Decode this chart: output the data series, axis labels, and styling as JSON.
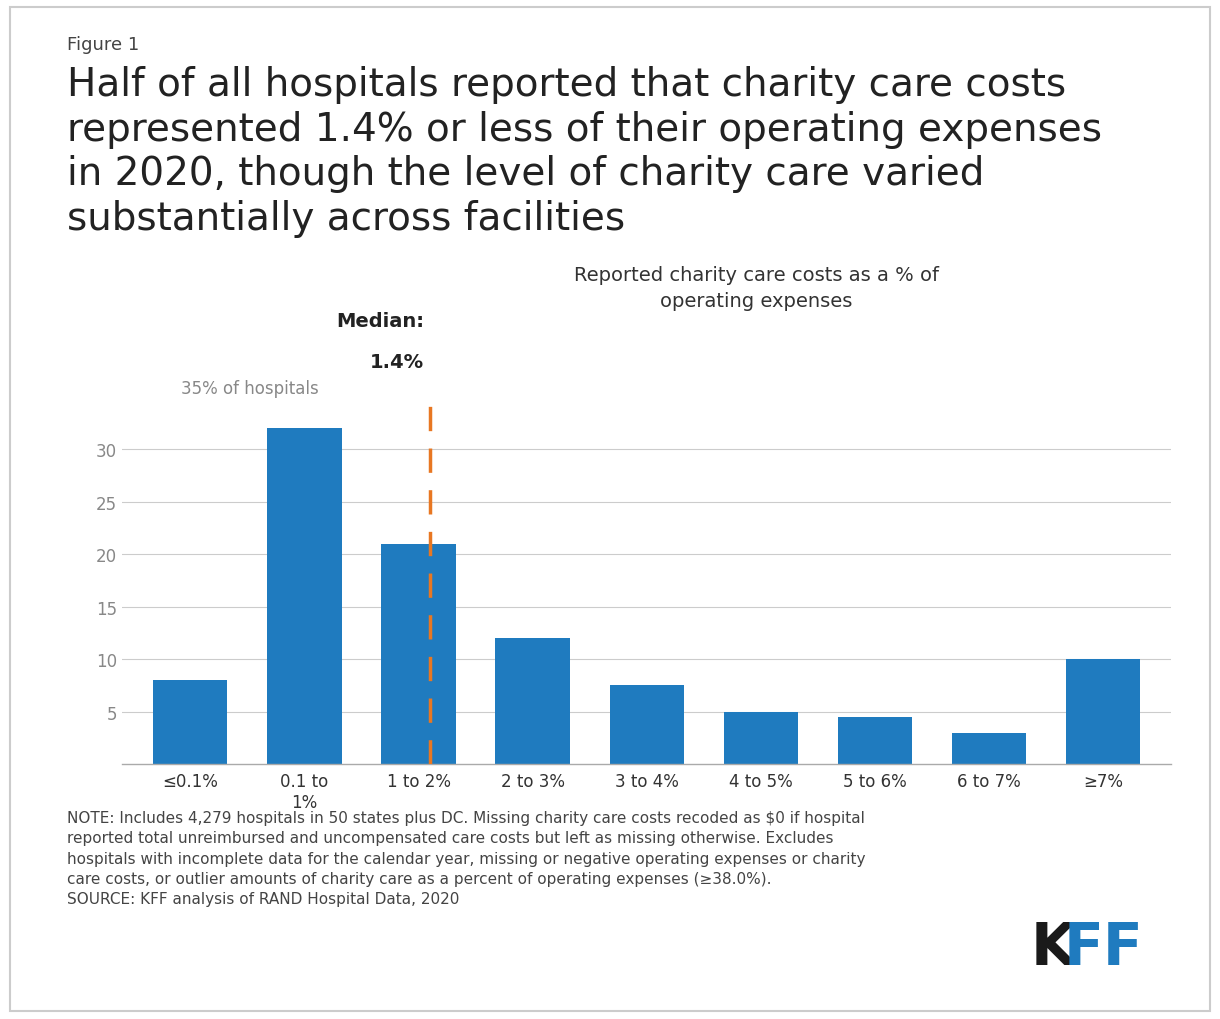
{
  "figure_label": "Figure 1",
  "title": "Half of all hospitals reported that charity care costs\nrepresented 1.4% or less of their operating expenses\nin 2020, though the level of charity care varied\nsubstantially across facilities",
  "chart_subtitle": "Reported charity care costs as a % of\noperating expenses",
  "categories": [
    "≤0.1%",
    "0.1 to\n1%",
    "1 to 2%",
    "2 to 3%",
    "3 to 4%",
    "4 to 5%",
    "5 to 6%",
    "6 to 7%",
    "≥7%"
  ],
  "values": [
    8,
    32,
    21,
    12,
    7.5,
    5,
    4.5,
    3,
    10
  ],
  "bar_color": "#1f7bbf",
  "background_color": "#ffffff",
  "ylim": [
    0,
    35
  ],
  "yticks": [
    5,
    10,
    15,
    20,
    25,
    30
  ],
  "ylabel_special": "35% of hospitals",
  "median_label_line1": "Median:",
  "median_label_line2": "1.4%",
  "median_line_color": "#e87722",
  "note_text": "NOTE: Includes 4,279 hospitals in 50 states plus DC. Missing charity care costs recoded as $0 if hospital\nreported total unreimbursed and uncompensated care costs but left as missing otherwise. Excludes\nhospitals with incomplete data for the calendar year, missing or negative operating expenses or charity\ncare costs, or outlier amounts of charity care as a percent of operating expenses (≥38.0%).\nSOURCE: KFF analysis of RAND Hospital Data, 2020",
  "title_fontsize": 28,
  "figure_label_fontsize": 13,
  "subtitle_fontsize": 14,
  "note_fontsize": 11,
  "tick_label_fontsize": 12,
  "ytick_label_fontsize": 12,
  "median_fontsize": 14
}
